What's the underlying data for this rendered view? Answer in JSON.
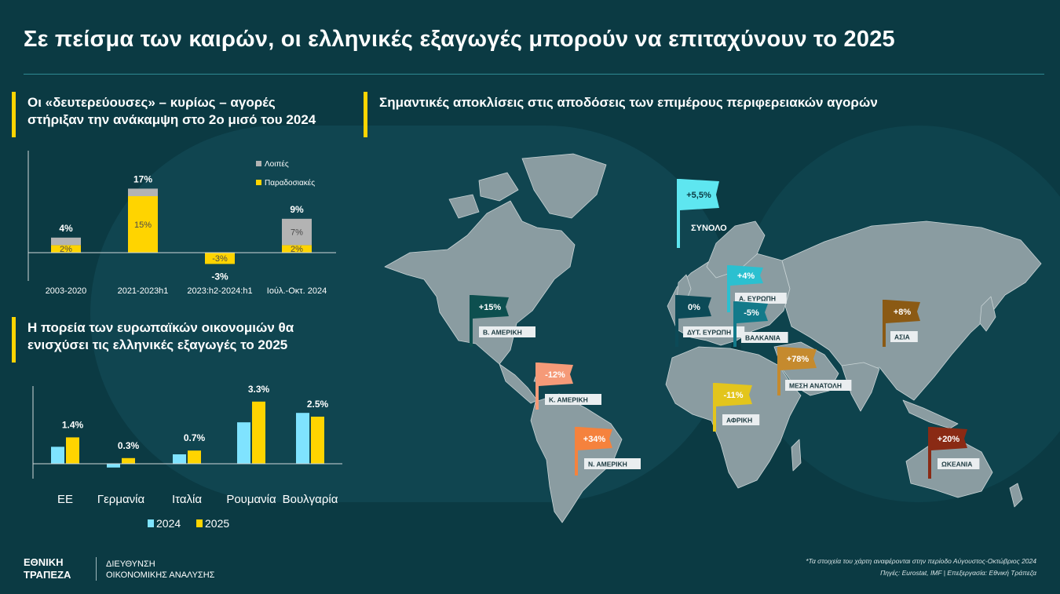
{
  "title": "Σε πείσμα των καιρών, οι ελληνικές εξαγωγές μπορούν να επιταχύνουν το 2025",
  "chart_data": [
    {
      "type": "bar",
      "title_lines": [
        "Οι «δευτερεύουσες» – κυρίως – αγορές",
        "στήριξαν την ανάκαμψη στο 2ο μισό του 2024"
      ],
      "stacked": true,
      "categories": [
        "2003-2020",
        "2021-2023h1",
        "2023:h2-2024:h1",
        "Ιούλ.-Οκτ. 2024"
      ],
      "series": [
        {
          "name": "Παραδοσιακές",
          "color": "#ffd400",
          "values": [
            2,
            15,
            -3,
            2
          ],
          "labels": [
            "2%",
            "15%",
            "-3%",
            "2%"
          ]
        },
        {
          "name": "Λοιπές",
          "color": "#b3b3b3",
          "values": [
            2,
            2,
            0,
            7
          ],
          "labels": [
            "",
            "",
            "",
            "7%"
          ]
        }
      ],
      "totals": [
        4,
        17,
        -3,
        9
      ],
      "total_labels": [
        "4%",
        "17%",
        "-3%",
        "9%"
      ],
      "legend": [
        "Λοιπές",
        "Παραδοσιακές"
      ],
      "legend_position": "top-right"
    },
    {
      "type": "bar",
      "title_lines": [
        "Η πορεία των ευρωπαϊκών οικονομιών θα",
        "ενισχύσει τις ελληνικές εξαγωγές το 2025"
      ],
      "categories": [
        "ΕΕ",
        "Γερμανία",
        "Ιταλία",
        "Ρουμανία",
        "Βουλγαρία"
      ],
      "series": [
        {
          "name": "2024",
          "color": "#7fe3ff",
          "values": [
            0.9,
            -0.2,
            0.5,
            2.2,
            2.7
          ]
        },
        {
          "name": "2025",
          "color": "#ffd400",
          "values": [
            1.4,
            0.3,
            0.7,
            3.3,
            2.5
          ],
          "labels": [
            "1.4%",
            "0.3%",
            "0.7%",
            "3.3%",
            "2.5%"
          ]
        }
      ],
      "legend": [
        "2024",
        "2025"
      ],
      "legend_position": "bottom"
    }
  ],
  "map": {
    "title": "Σημαντικές αποκλίσεις στις αποδόσεις των επιμέρους περιφερειακών αγορών",
    "regions": [
      {
        "value": "+5,5%",
        "label": "ΣΥΝΟΛΟ",
        "color": "#5ee6f0"
      },
      {
        "value": "+15%",
        "label": "Β. ΑΜΕΡΙΚΗ",
        "color": "#0d4f4f"
      },
      {
        "value": "0%",
        "label": "ΔΥΤ. ΕΥΡΩΠΗ",
        "color": "#0c4a57"
      },
      {
        "value": "+4%",
        "label": "Α. ΕΥΡΩΠΗ",
        "color": "#2bc0d0"
      },
      {
        "value": "-5%",
        "label": "ΒΑΛΚΑΝΙΑ",
        "color": "#137a8a"
      },
      {
        "value": "+8%",
        "label": "ΑΣΙΑ",
        "color": "#8b5a14"
      },
      {
        "value": "+78%",
        "label": "ΜΕΣΗ ΑΝΑΤΟΛΗ",
        "color": "#c58a2e"
      },
      {
        "value": "-12%",
        "label": "Κ. ΑΜΕΡΙΚΗ",
        "color": "#f59a78"
      },
      {
        "value": "-11%",
        "label": "ΑΦΡΙΚΗ",
        "color": "#e3c51c"
      },
      {
        "value": "+34%",
        "label": "Ν. ΑΜΕΡΙΚΗ",
        "color": "#f5823d"
      },
      {
        "value": "+20%",
        "label": "ΩΚΕΑΝΙΑ",
        "color": "#8a2a14"
      }
    ]
  },
  "footer": {
    "note": "*Τα στοιχεία του χάρτη αναφέρονται στην περίοδο Αύγουστος-Οκτώβριος 2024",
    "sources": "Πηγές: Eurostat, IMF | Επεξεργασία: Εθνική Τράπεζα",
    "logo_line1": "ΕΘΝΙΚΗ",
    "logo_line2": "ΤΡΑΠΕΖΑ",
    "dept_line1": "ΔΙΕΥΘΥΝΣΗ",
    "dept_line2": "ΟΙΚΟΝΟΜΙΚΗΣ ΑΝΑΛΥΣΗΣ"
  }
}
